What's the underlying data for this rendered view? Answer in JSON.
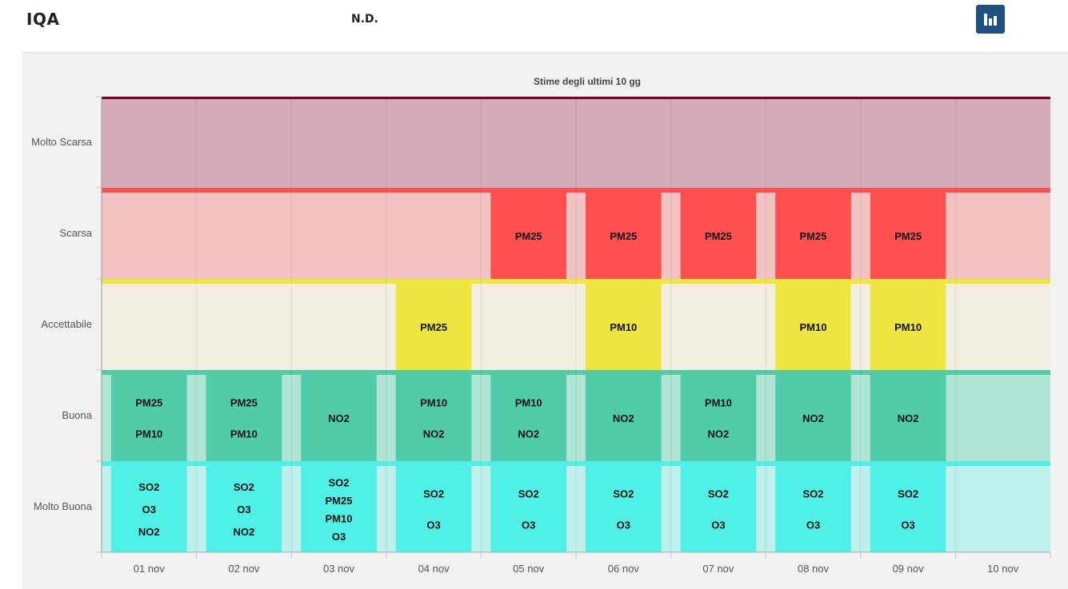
{
  "header": {
    "title": "IQA",
    "value": "N.D.",
    "chart_button_icon": "bar-chart-icon"
  },
  "colors": {
    "molto_scarsa_bg": "#d5aab9",
    "molto_scarsa_line": "#800020",
    "scarsa_bg": "#f3c2c2",
    "scarsa_bar": "#ff5050",
    "accettabile_bg": "#f2eee2",
    "accettabile_bar": "#f0e640",
    "buona_bg": "#b0e4d4",
    "buona_bar": "#50ccaa",
    "molto_buona_bg": "#c0f0ec",
    "molto_buona_bar": "#50f0e6"
  },
  "chart_data": {
    "type": "heatmap",
    "title": "Stime degli ultimi 10 gg",
    "categories": [
      "01 nov",
      "02 nov",
      "03 nov",
      "04 nov",
      "05 nov",
      "06 nov",
      "07 nov",
      "08 nov",
      "09 nov",
      "10 nov"
    ],
    "levels": [
      "Molto Buona",
      "Buona",
      "Accettabile",
      "Scarsa",
      "Molto Scarsa"
    ],
    "level_labels_top_to_bottom": [
      "Molto Scarsa",
      "Scarsa",
      "Accettabile",
      "Buona",
      "Molto Buona"
    ],
    "grid": true,
    "series": [
      {
        "name": "Molto Scarsa",
        "values": [
          [],
          [],
          [],
          [],
          [],
          [],
          [],
          [],
          [],
          []
        ]
      },
      {
        "name": "Scarsa",
        "values": [
          [],
          [],
          [],
          [],
          [
            "PM25"
          ],
          [
            "PM25"
          ],
          [
            "PM25"
          ],
          [
            "PM25"
          ],
          [
            "PM25"
          ],
          []
        ]
      },
      {
        "name": "Accettabile",
        "values": [
          [],
          [],
          [],
          [
            "PM25"
          ],
          [],
          [
            "PM10"
          ],
          [],
          [
            "PM10"
          ],
          [
            "PM10"
          ],
          []
        ]
      },
      {
        "name": "Buona",
        "values": [
          [
            "PM25",
            "PM10"
          ],
          [
            "PM25",
            "PM10"
          ],
          [
            "NO2"
          ],
          [
            "PM10",
            "NO2"
          ],
          [
            "PM10",
            "NO2"
          ],
          [
            "NO2"
          ],
          [
            "PM10",
            "NO2"
          ],
          [
            "NO2"
          ],
          [
            "NO2"
          ],
          []
        ]
      },
      {
        "name": "Molto Buona",
        "values": [
          [
            "SO2",
            "O3",
            "NO2"
          ],
          [
            "SO2",
            "O3",
            "NO2"
          ],
          [
            "SO2",
            "PM25",
            "PM10",
            "O3"
          ],
          [
            "SO2",
            "O3"
          ],
          [
            "SO2",
            "O3"
          ],
          [
            "SO2",
            "O3"
          ],
          [
            "SO2",
            "O3"
          ],
          [
            "SO2",
            "O3"
          ],
          [
            "SO2",
            "O3"
          ],
          []
        ]
      }
    ]
  }
}
